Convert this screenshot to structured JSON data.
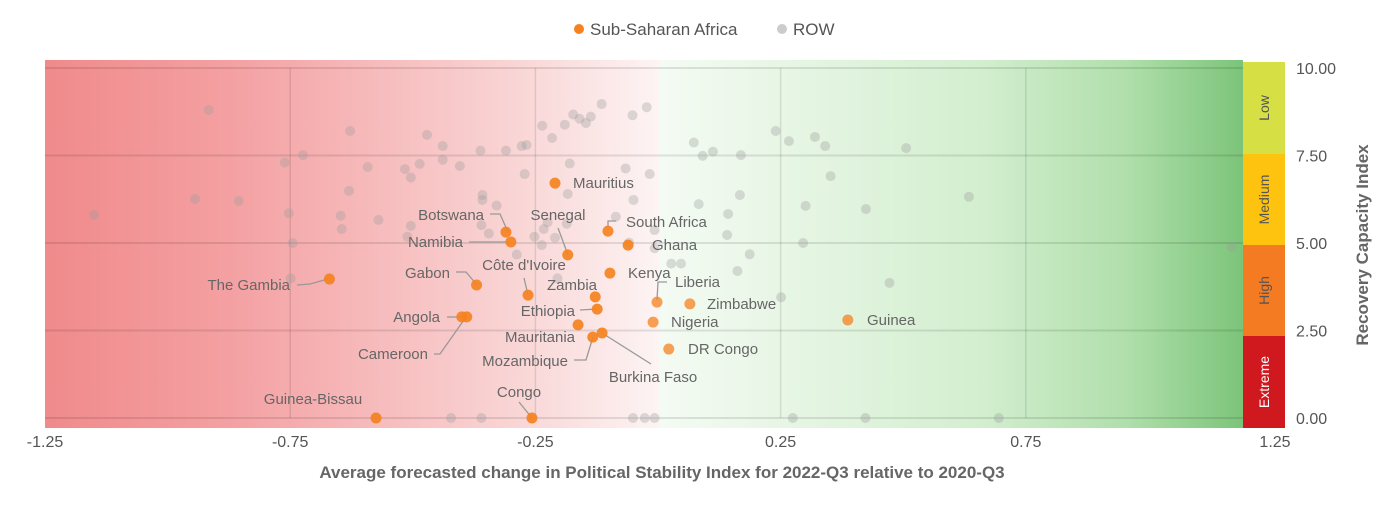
{
  "chart_data": {
    "type": "scatter",
    "title": "",
    "xlabel": "Average forecasted change in Political Stability Index for 2022-Q3 relative to 2020-Q3",
    "ylabel": "Recovery Capacity Index",
    "xlim": [
      -1.25,
      1.25
    ],
    "ylim": [
      0,
      10
    ],
    "x_ticks": [
      "-1.25",
      "-0.75",
      "-0.25",
      "0.25",
      "0.75",
      "1.25"
    ],
    "x_tick_values": [
      -1.25,
      -0.75,
      -0.25,
      0.25,
      0.75,
      1.25
    ],
    "y_ticks": [
      "0.00",
      "2.50",
      "5.00",
      "7.50",
      "10.00"
    ],
    "y_tick_values": [
      0,
      2.5,
      5,
      7.5,
      10
    ],
    "grid": true,
    "legend_position": "top",
    "background": {
      "negative_color": "#f08a8b",
      "positive_color": "#7cc47a"
    },
    "risk_bands": [
      {
        "label": "Low",
        "range": [
          7.5,
          10
        ],
        "color": "#d6e044",
        "text_color": "#555555"
      },
      {
        "label": "Medium",
        "range": [
          5,
          7.5
        ],
        "color": "#fdc30f",
        "text_color": "#555555"
      },
      {
        "label": "High",
        "range": [
          2.5,
          5
        ],
        "color": "#f47b22",
        "text_color": "#555555"
      },
      {
        "label": "Extreme",
        "range": [
          0,
          2.5
        ],
        "color": "#d0181f",
        "text_color": "#ffffff"
      }
    ],
    "series": [
      {
        "name": "Sub-Saharan Africa",
        "color": "#f5821f",
        "points": [
          {
            "label": "The Gambia",
            "x": -0.67,
            "y": 3.97
          },
          {
            "label": "Guinea-Bissau",
            "x": -0.575,
            "y": 0.0
          },
          {
            "label": "Angola",
            "x": -0.39,
            "y": 2.89
          },
          {
            "label": "Cameroon",
            "x": -0.4,
            "y": 2.89
          },
          {
            "label": "Gabon",
            "x": -0.37,
            "y": 3.8
          },
          {
            "label": "Botswana",
            "x": -0.31,
            "y": 5.31
          },
          {
            "label": "Namibia",
            "x": -0.3,
            "y": 5.03
          },
          {
            "label": "Côte d'Ivoire",
            "x": -0.265,
            "y": 3.51
          },
          {
            "label": "Congo",
            "x": -0.257,
            "y": 0.0
          },
          {
            "label": "Mauritius",
            "x": -0.21,
            "y": 6.71
          },
          {
            "label": "Senegal",
            "x": -0.184,
            "y": 4.66
          },
          {
            "label": "Mauritania",
            "x": -0.163,
            "y": 2.66
          },
          {
            "label": "Mozambique",
            "x": -0.133,
            "y": 2.31
          },
          {
            "label": "Zambia",
            "x": -0.128,
            "y": 3.46
          },
          {
            "label": "Ethiopia",
            "x": -0.124,
            "y": 3.11
          },
          {
            "label": "Burkina Faso",
            "x": -0.114,
            "y": 2.43
          },
          {
            "label": "South Africa",
            "x": -0.102,
            "y": 5.34
          },
          {
            "label": "Kenya",
            "x": -0.098,
            "y": 4.14
          },
          {
            "label": "Ghana",
            "x": -0.061,
            "y": 4.94
          },
          {
            "label": "Nigeria",
            "x": -0.01,
            "y": 2.74
          },
          {
            "label": "Liberia",
            "x": -0.002,
            "y": 3.31
          },
          {
            "label": "Zimbabwe",
            "x": 0.065,
            "y": 3.26
          },
          {
            "label": "DR Congo",
            "x": 0.022,
            "y": 1.97
          },
          {
            "label": "Guinea",
            "x": 0.387,
            "y": 2.8
          }
        ]
      },
      {
        "name": "ROW",
        "color": "#b5b5b5",
        "points": [
          {
            "x": -0.916,
            "y": 8.8
          },
          {
            "x": -1.15,
            "y": 5.8
          },
          {
            "x": -0.944,
            "y": 6.26
          },
          {
            "x": -0.855,
            "y": 6.2
          },
          {
            "x": -0.628,
            "y": 8.2
          },
          {
            "x": -0.724,
            "y": 7.51
          },
          {
            "x": -0.761,
            "y": 7.3
          },
          {
            "x": -0.753,
            "y": 5.85
          },
          {
            "x": -0.745,
            "y": 5.0
          },
          {
            "x": -0.749,
            "y": 3.99
          },
          {
            "x": -0.63,
            "y": 6.49
          },
          {
            "x": -0.647,
            "y": 5.78
          },
          {
            "x": -0.645,
            "y": 5.4
          },
          {
            "x": -0.592,
            "y": 7.17
          },
          {
            "x": -0.57,
            "y": 5.66
          },
          {
            "x": -0.516,
            "y": 7.11
          },
          {
            "x": -0.504,
            "y": 6.87
          },
          {
            "x": -0.486,
            "y": 7.26
          },
          {
            "x": -0.471,
            "y": 8.09
          },
          {
            "x": -0.439,
            "y": 7.77
          },
          {
            "x": -0.439,
            "y": 7.38
          },
          {
            "x": -0.404,
            "y": 7.2
          },
          {
            "x": -0.504,
            "y": 5.49
          },
          {
            "x": -0.511,
            "y": 5.18
          },
          {
            "x": -0.362,
            "y": 7.64
          },
          {
            "x": -0.31,
            "y": 7.64
          },
          {
            "x": -0.278,
            "y": 7.77
          },
          {
            "x": -0.268,
            "y": 7.8
          },
          {
            "x": -0.236,
            "y": 8.35
          },
          {
            "x": -0.216,
            "y": 8.0
          },
          {
            "x": -0.19,
            "y": 8.38
          },
          {
            "x": -0.173,
            "y": 8.67
          },
          {
            "x": -0.16,
            "y": 8.55
          },
          {
            "x": -0.147,
            "y": 8.43
          },
          {
            "x": -0.137,
            "y": 8.61
          },
          {
            "x": -0.115,
            "y": 8.97
          },
          {
            "x": -0.272,
            "y": 6.97
          },
          {
            "x": -0.18,
            "y": 7.27
          },
          {
            "x": -0.358,
            "y": 6.37
          },
          {
            "x": -0.358,
            "y": 6.23
          },
          {
            "x": -0.329,
            "y": 6.07
          },
          {
            "x": -0.36,
            "y": 5.51
          },
          {
            "x": -0.345,
            "y": 5.27
          },
          {
            "x": -0.288,
            "y": 4.67
          },
          {
            "x": -0.252,
            "y": 5.18
          },
          {
            "x": -0.237,
            "y": 4.94
          },
          {
            "x": -0.233,
            "y": 5.4
          },
          {
            "x": -0.225,
            "y": 5.59
          },
          {
            "x": -0.21,
            "y": 5.15
          },
          {
            "x": -0.186,
            "y": 5.55
          },
          {
            "x": -0.184,
            "y": 6.4
          },
          {
            "x": -0.205,
            "y": 3.99
          },
          {
            "x": -0.575,
            "y": 0.0
          },
          {
            "x": -0.422,
            "y": 0.0
          },
          {
            "x": -0.36,
            "y": 0.0
          },
          {
            "x": -0.051,
            "y": 0.0
          },
          {
            "x": -0.027,
            "y": 0.0
          },
          {
            "x": -0.007,
            "y": 0.0
          },
          {
            "x": -0.052,
            "y": 8.65
          },
          {
            "x": -0.023,
            "y": 8.88
          },
          {
            "x": -0.066,
            "y": 7.13
          },
          {
            "x": -0.017,
            "y": 6.97
          },
          {
            "x": -0.05,
            "y": 6.23
          },
          {
            "x": -0.086,
            "y": 5.75
          },
          {
            "x": -0.059,
            "y": 5.01
          },
          {
            "x": -0.007,
            "y": 4.85
          },
          {
            "x": -0.007,
            "y": 5.37
          },
          {
            "x": 0.073,
            "y": 7.87
          },
          {
            "x": 0.091,
            "y": 7.49
          },
          {
            "x": 0.112,
            "y": 7.61
          },
          {
            "x": 0.169,
            "y": 7.51
          },
          {
            "x": 0.24,
            "y": 8.2
          },
          {
            "x": 0.267,
            "y": 7.91
          },
          {
            "x": 0.32,
            "y": 8.03
          },
          {
            "x": 0.341,
            "y": 7.77
          },
          {
            "x": 0.506,
            "y": 7.71
          },
          {
            "x": 0.352,
            "y": 6.91
          },
          {
            "x": 0.634,
            "y": 6.32
          },
          {
            "x": 0.083,
            "y": 6.11
          },
          {
            "x": 0.167,
            "y": 6.37
          },
          {
            "x": 0.143,
            "y": 5.83
          },
          {
            "x": 0.141,
            "y": 5.23
          },
          {
            "x": 0.301,
            "y": 6.06
          },
          {
            "x": 0.424,
            "y": 5.97
          },
          {
            "x": 0.296,
            "y": 5.0
          },
          {
            "x": 0.187,
            "y": 4.68
          },
          {
            "x": 0.162,
            "y": 4.2
          },
          {
            "x": 0.027,
            "y": 4.41
          },
          {
            "x": 0.047,
            "y": 4.41
          },
          {
            "x": 0.472,
            "y": 3.86
          },
          {
            "x": 0.251,
            "y": 3.45
          },
          {
            "x": 1.17,
            "y": 4.88
          },
          {
            "x": 0.275,
            "y": 0.0
          },
          {
            "x": 0.423,
            "y": 0.0
          },
          {
            "x": 0.695,
            "y": 0.0
          }
        ]
      }
    ]
  }
}
